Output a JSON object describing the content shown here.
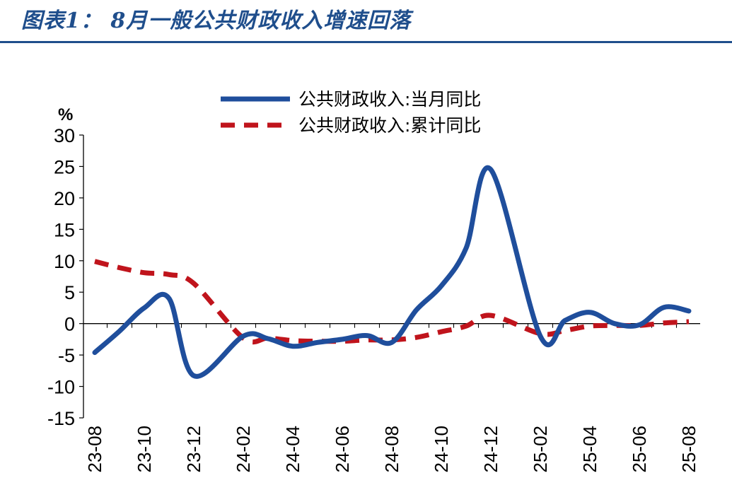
{
  "title": "图表1： 8月一般公共财政收入增速回落",
  "chart_data": {
    "type": "line",
    "unit_label": "%",
    "y_ticks": [
      "30",
      "25",
      "20",
      "15",
      "10",
      "5",
      "0",
      "-5",
      "-10",
      "-15"
    ],
    "ylim": [
      -15,
      30
    ],
    "x_tick_labels": [
      "23-08",
      "23-10",
      "23-12",
      "24-02",
      "24-04",
      "24-06",
      "24-08",
      "24-10",
      "24-12",
      "25-02",
      "25-04",
      "25-06",
      "25-08"
    ],
    "x": [
      "23-08",
      "23-09",
      "23-10",
      "23-11",
      "23-12",
      "24-01",
      "24-02",
      "24-03",
      "24-04",
      "24-05",
      "24-06",
      "24-07",
      "24-08",
      "24-09",
      "24-10",
      "24-11",
      "24-12",
      "25-01",
      "25-02",
      "25-03",
      "25-04",
      "25-05",
      "25-06",
      "25-07",
      "25-08"
    ],
    "legend_position": "top-center",
    "series": [
      {
        "name": "公共财政收入:当月同比",
        "style": "solid",
        "color": "#1f4e9c",
        "values": [
          -4.6,
          -1.2,
          2.5,
          4.0,
          -8.3,
          null,
          -2.0,
          -2.4,
          -3.6,
          -3.0,
          -2.5,
          -1.9,
          -3.0,
          2.2,
          6.0,
          12.0,
          24.5,
          null,
          -2.0,
          0.5,
          1.8,
          0.0,
          -0.2,
          2.6,
          2.0
        ]
      },
      {
        "name": "公共财政收入:累计同比",
        "style": "dashed",
        "color": "#c0141c",
        "values": [
          9.9,
          8.9,
          8.1,
          7.8,
          6.4,
          null,
          -2.3,
          -2.3,
          -2.7,
          -2.8,
          -2.8,
          -2.6,
          -2.6,
          -2.2,
          -1.3,
          -0.4,
          1.3,
          null,
          -1.6,
          -1.1,
          -0.4,
          -0.3,
          -0.3,
          0.1,
          0.3
        ]
      }
    ]
  }
}
